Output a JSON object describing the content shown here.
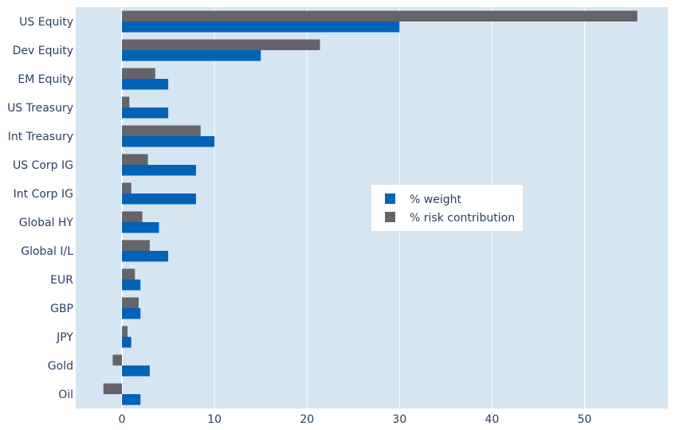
{
  "chart_data": {
    "type": "bar",
    "orientation": "horizontal",
    "categories": [
      "US Equity",
      "Dev Equity",
      "EM Equity",
      "US Treasury",
      "Int Treasury",
      "US Corp IG",
      "Int Corp IG",
      "Global HY",
      "Global I/L",
      "EUR",
      "GBP",
      "JPY",
      "Gold",
      "Oil"
    ],
    "series": [
      {
        "name": "% weight",
        "color": "#0063b8",
        "values": [
          30,
          15,
          5,
          5,
          10,
          8,
          8,
          4,
          5,
          2,
          2,
          1,
          3,
          2
        ]
      },
      {
        "name": "% risk contribution",
        "color": "#646469",
        "values": [
          55.7,
          21.4,
          3.6,
          0.8,
          8.5,
          2.8,
          1.0,
          2.2,
          3.0,
          1.4,
          1.8,
          0.6,
          -1.0,
          -2.0
        ]
      }
    ],
    "xlim": [
      -5,
      59
    ],
    "xticks": [
      0,
      10,
      20,
      30,
      40,
      50
    ],
    "xtick_labels": [
      "0",
      "10",
      "20",
      "30",
      "40",
      "50"
    ],
    "grid": true,
    "legend_position": "center-right",
    "plot_background": "#d5e5f1",
    "title": "",
    "xlabel": "",
    "ylabel": ""
  }
}
